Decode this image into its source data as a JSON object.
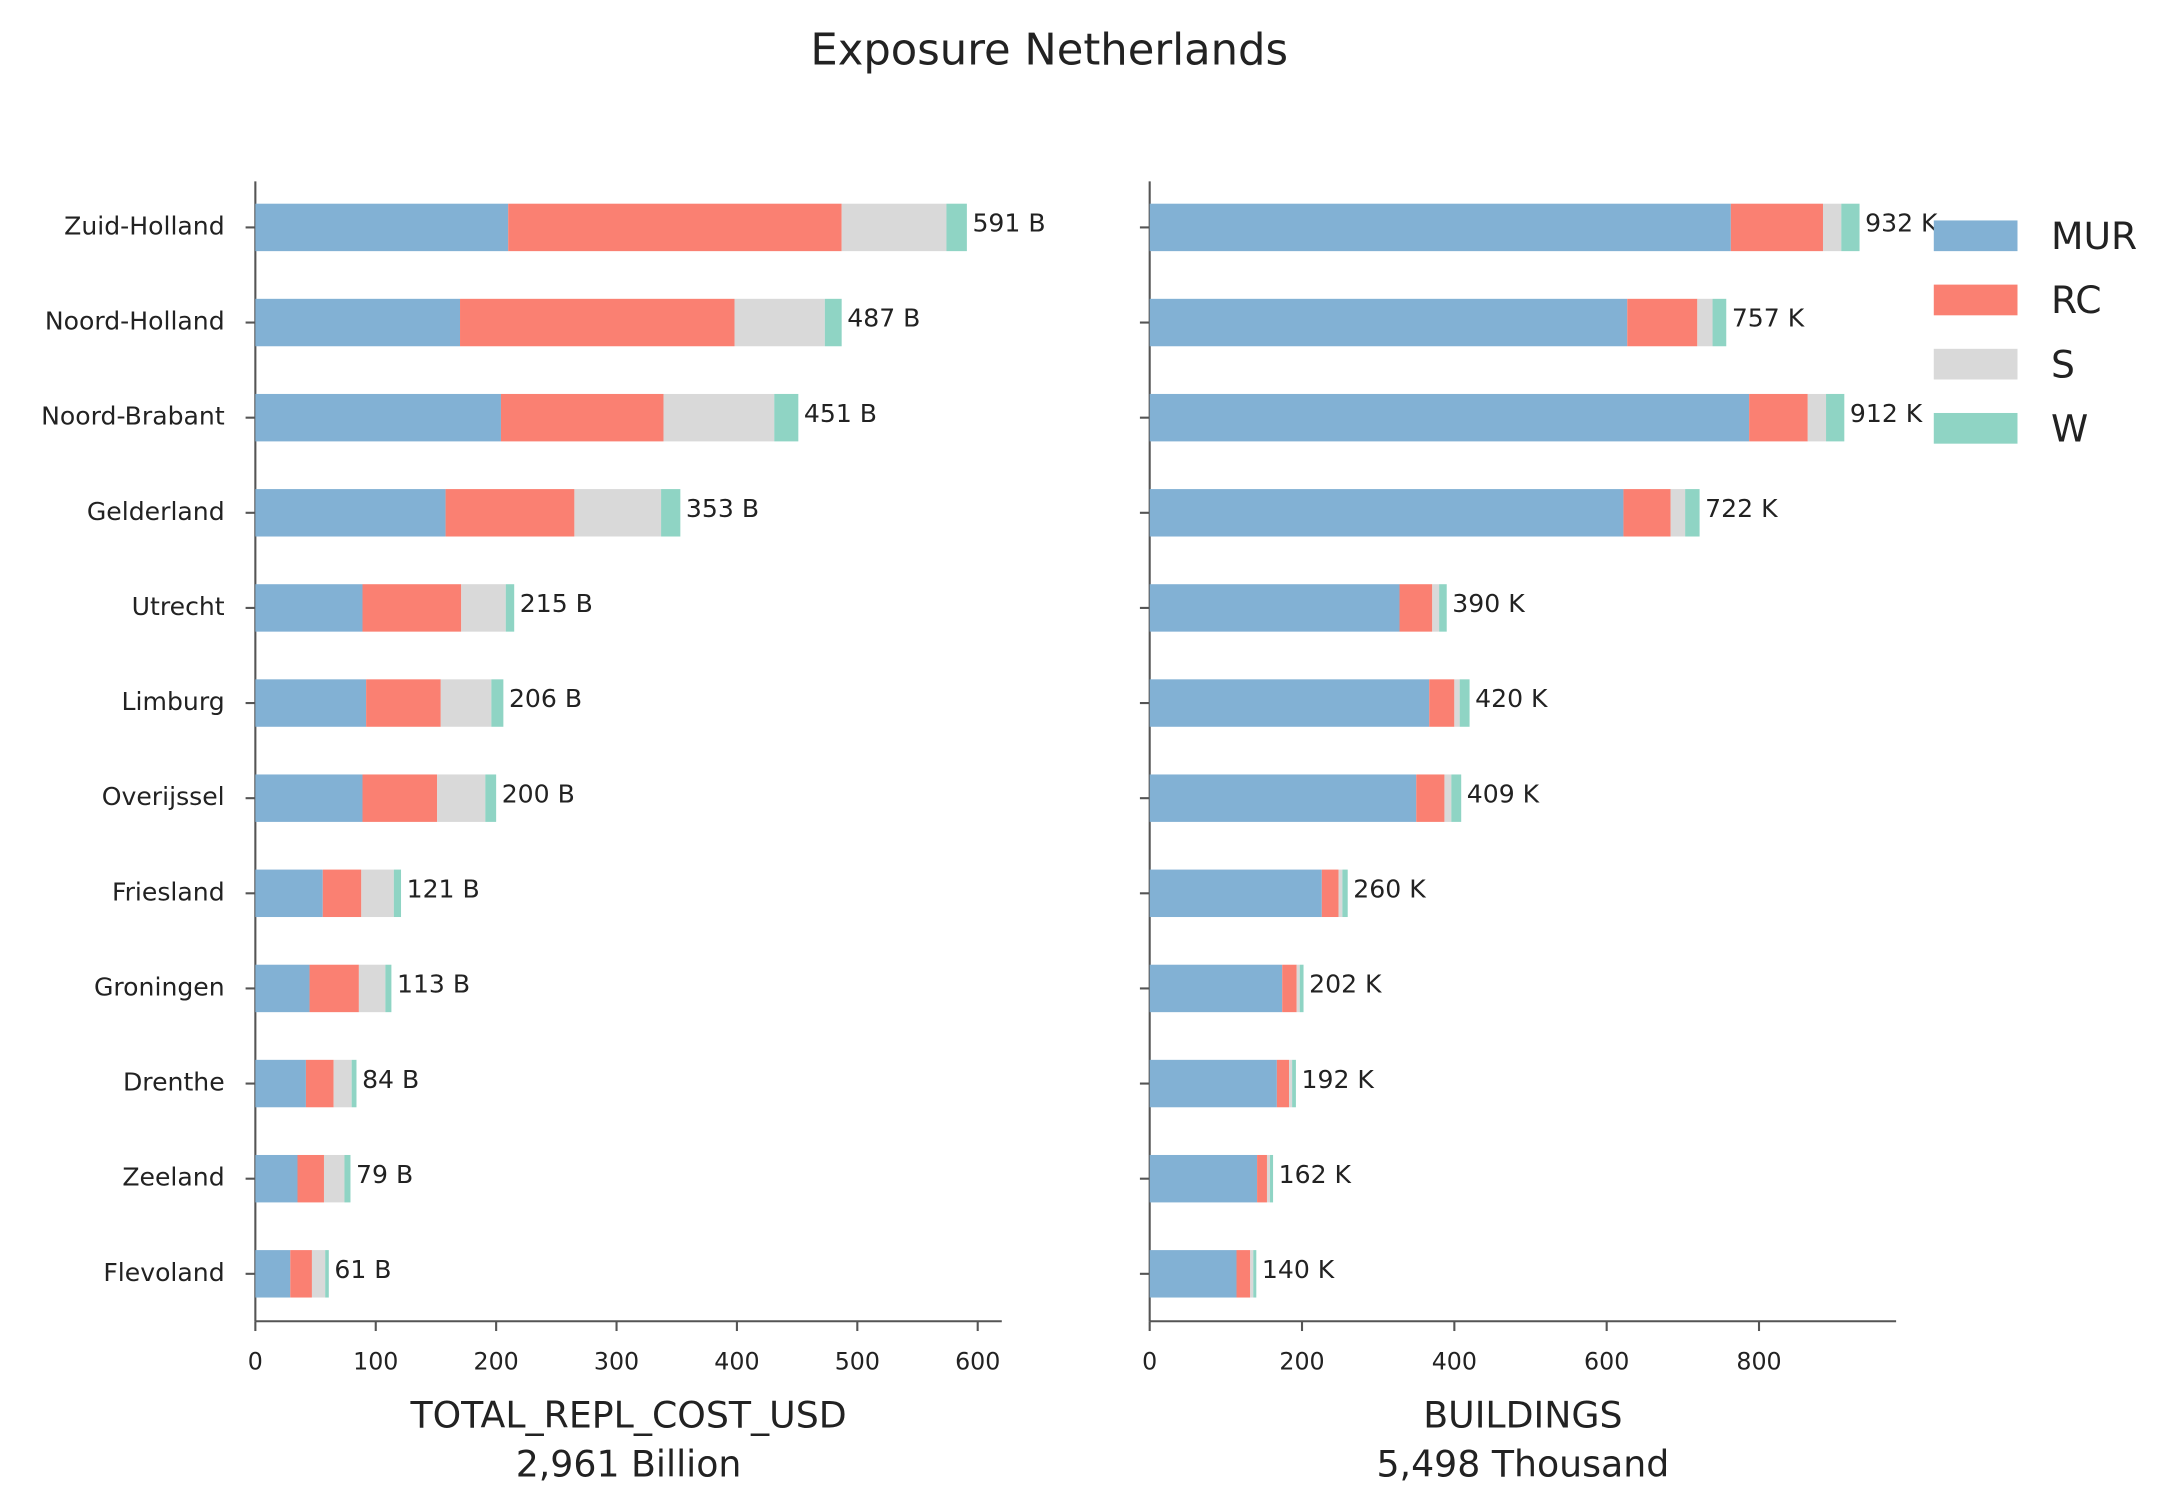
{
  "title": "Exposure Netherlands",
  "chart_data": [
    {
      "type": "bar",
      "orientation": "horizontal",
      "stacked": true,
      "categories": [
        "Zuid-Holland",
        "Noord-Holland",
        "Noord-Brabant",
        "Gelderland",
        "Utrecht",
        "Limburg",
        "Overijssel",
        "Friesland",
        "Groningen",
        "Drenthe",
        "Zeeland",
        "Flevoland"
      ],
      "series": [
        {
          "name": "MUR",
          "color": "#82b1d4",
          "values": [
            210,
            170,
            204,
            158,
            89,
            92,
            89,
            56,
            45,
            42,
            35,
            29
          ]
        },
        {
          "name": "RC",
          "color": "#fa8072",
          "values": [
            277,
            228,
            135,
            107,
            82,
            62,
            62,
            32,
            41,
            23,
            22,
            18
          ]
        },
        {
          "name": "S",
          "color": "#d9d9d9",
          "values": [
            87,
            75,
            92,
            72,
            37,
            42,
            40,
            27,
            22,
            15,
            17,
            11
          ]
        },
        {
          "name": "W",
          "color": "#8fd4c4",
          "values": [
            17,
            14,
            20,
            16,
            7,
            10,
            9,
            6,
            5,
            4,
            5,
            3
          ]
        }
      ],
      "totals": {
        "values": [
          591,
          487,
          451,
          353,
          215,
          206,
          200,
          121,
          113,
          84,
          79,
          61
        ],
        "value_labels": [
          "591 B",
          "487 B",
          "451 B",
          "353 B",
          "215 B",
          "206 B",
          "200 B",
          "121 B",
          "113 B",
          "84 B",
          "79 B",
          "61 B"
        ]
      },
      "xlim": [
        0,
        620
      ],
      "xticks": [
        0,
        100,
        200,
        300,
        400,
        500,
        600
      ],
      "xlabel": "TOTAL_REPL_COST_USD",
      "xlabel_note": "2,961 Billion"
    },
    {
      "type": "bar",
      "orientation": "horizontal",
      "stacked": true,
      "series": [
        {
          "name": "MUR",
          "color": "#82b1d4",
          "values": [
            763,
            627,
            787,
            622,
            328,
            367,
            350,
            226,
            174,
            167,
            141,
            114
          ]
        },
        {
          "name": "RC",
          "color": "#fa8072",
          "values": [
            121,
            92,
            77,
            62,
            43,
            33,
            37,
            22,
            19,
            16,
            13,
            18
          ]
        },
        {
          "name": "S",
          "color": "#d9d9d9",
          "values": [
            24,
            20,
            24,
            19,
            9,
            7,
            9,
            5,
            4,
            4,
            4,
            4
          ]
        },
        {
          "name": "W",
          "color": "#8fd4c4",
          "values": [
            24,
            18,
            24,
            19,
            10,
            13,
            13,
            7,
            5,
            5,
            4,
            4
          ]
        }
      ],
      "totals": {
        "values": [
          932,
          757,
          912,
          722,
          390,
          420,
          409,
          260,
          202,
          192,
          162,
          140
        ],
        "value_labels": [
          "932 K",
          "757 K",
          "912 K",
          "722 K",
          "390 K",
          "420 K",
          "409 K",
          "260 K",
          "202 K",
          "192 K",
          "162 K",
          "140 K"
        ]
      },
      "xlim": [
        0,
        980
      ],
      "xticks": [
        0,
        200,
        400,
        600,
        800
      ],
      "xlabel": "BUILDINGS",
      "xlabel_note": "5,498 Thousand",
      "legend": "upper right"
    }
  ]
}
